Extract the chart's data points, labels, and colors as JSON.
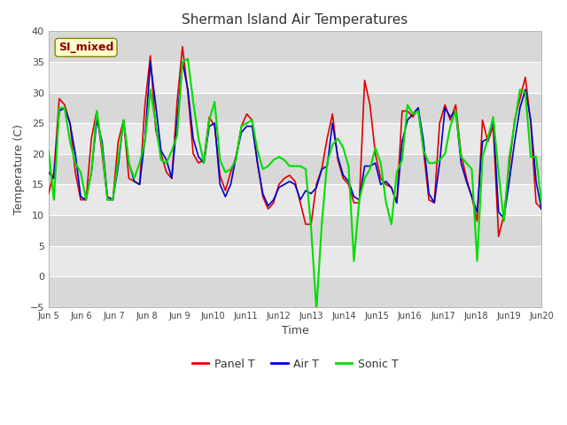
{
  "title": "Sherman Island Air Temperatures",
  "xlabel": "Time",
  "ylabel": "Temperature (C)",
  "ylim": [
    -5,
    40
  ],
  "annotation_text": "SI_mixed",
  "background_color": "#ffffff",
  "plot_bg_color": "#e8e8e8",
  "band_colors": [
    "#d8d8d8",
    "#e8e8e8"
  ],
  "grid_color": "#ffffff",
  "xtick_labels": [
    "Jun 5",
    "Jun 6",
    "Jun 7",
    "Jun 8",
    "Jun 9",
    "Jun 10",
    "Jun 11",
    "Jun 12",
    "Jun 13",
    "Jun 14",
    "Jun 15",
    "Jun 16",
    "Jun 17",
    "Jun 18",
    "Jun 19",
    "Jun 20"
  ],
  "colors": {
    "panel_t": "#dd0000",
    "air_t": "#0000cc",
    "sonic_t": "#00dd00"
  },
  "legend_labels": [
    "Panel T",
    "Air T",
    "Sonic T"
  ],
  "panel_t": [
    13.5,
    17.0,
    29.0,
    28.0,
    25.0,
    17.0,
    12.5,
    12.5,
    22.5,
    27.0,
    20.0,
    12.5,
    12.5,
    22.0,
    25.5,
    16.0,
    15.5,
    15.0,
    28.0,
    36.0,
    24.0,
    20.0,
    17.0,
    16.0,
    28.5,
    37.5,
    30.0,
    20.0,
    18.5,
    19.0,
    26.0,
    24.5,
    16.5,
    14.0,
    17.0,
    19.5,
    24.5,
    26.5,
    25.5,
    18.5,
    13.0,
    11.0,
    12.0,
    15.0,
    16.0,
    16.5,
    15.5,
    12.0,
    8.5,
    8.5,
    15.0,
    17.5,
    22.5,
    26.5,
    19.0,
    16.0,
    15.0,
    12.0,
    12.0,
    32.0,
    28.0,
    20.0,
    16.0,
    15.0,
    14.5,
    12.0,
    27.0,
    27.0,
    26.0,
    27.5,
    20.5,
    12.5,
    12.0,
    25.0,
    28.0,
    25.5,
    28.0,
    20.0,
    16.0,
    13.0,
    9.0,
    25.5,
    22.0,
    24.5,
    6.5,
    10.0,
    18.0,
    25.5,
    29.0,
    32.5,
    25.0,
    12.0,
    11.0
  ],
  "air_t": [
    17.0,
    16.0,
    27.0,
    27.5,
    25.0,
    20.0,
    13.0,
    12.5,
    17.0,
    25.5,
    22.0,
    13.0,
    12.5,
    18.0,
    25.5,
    18.5,
    15.5,
    15.0,
    22.5,
    35.0,
    28.0,
    20.5,
    19.0,
    16.0,
    25.5,
    35.0,
    30.5,
    22.5,
    19.5,
    18.5,
    24.5,
    25.0,
    15.0,
    13.0,
    15.0,
    19.5,
    23.5,
    24.5,
    24.5,
    18.5,
    13.5,
    11.5,
    12.5,
    14.5,
    15.0,
    15.5,
    15.0,
    12.5,
    14.0,
    13.5,
    14.5,
    17.5,
    18.0,
    25.0,
    19.5,
    16.5,
    15.5,
    13.0,
    12.5,
    18.0,
    18.0,
    18.5,
    15.0,
    15.5,
    14.5,
    12.0,
    22.0,
    25.5,
    26.5,
    27.5,
    22.0,
    13.5,
    12.0,
    18.5,
    27.5,
    26.0,
    27.0,
    18.5,
    15.5,
    13.0,
    10.5,
    22.0,
    22.5,
    25.5,
    10.5,
    9.5,
    15.5,
    22.0,
    27.5,
    30.5,
    25.5,
    15.5,
    11.0
  ],
  "sonic_t": [
    20.5,
    12.5,
    27.5,
    27.5,
    22.0,
    18.5,
    17.0,
    12.5,
    17.0,
    27.0,
    21.0,
    12.5,
    12.5,
    19.0,
    25.5,
    18.5,
    16.0,
    18.5,
    22.0,
    30.5,
    25.0,
    19.0,
    18.5,
    20.5,
    23.0,
    35.0,
    35.5,
    28.5,
    22.5,
    18.5,
    25.5,
    28.5,
    19.0,
    17.0,
    17.5,
    19.0,
    24.5,
    25.0,
    25.5,
    20.5,
    17.5,
    18.0,
    19.0,
    19.5,
    19.0,
    18.0,
    18.0,
    18.0,
    17.5,
    8.0,
    -5.5,
    8.5,
    18.5,
    21.5,
    22.5,
    21.0,
    18.0,
    2.5,
    12.5,
    16.0,
    17.5,
    21.0,
    18.5,
    12.0,
    8.5,
    17.0,
    19.0,
    28.0,
    26.5,
    27.0,
    20.5,
    18.5,
    18.5,
    19.0,
    20.0,
    24.5,
    27.0,
    19.5,
    18.5,
    17.5,
    2.5,
    19.5,
    22.5,
    26.0,
    17.0,
    9.0,
    19.5,
    25.0,
    30.5,
    30.0,
    19.5,
    19.5,
    12.0
  ]
}
